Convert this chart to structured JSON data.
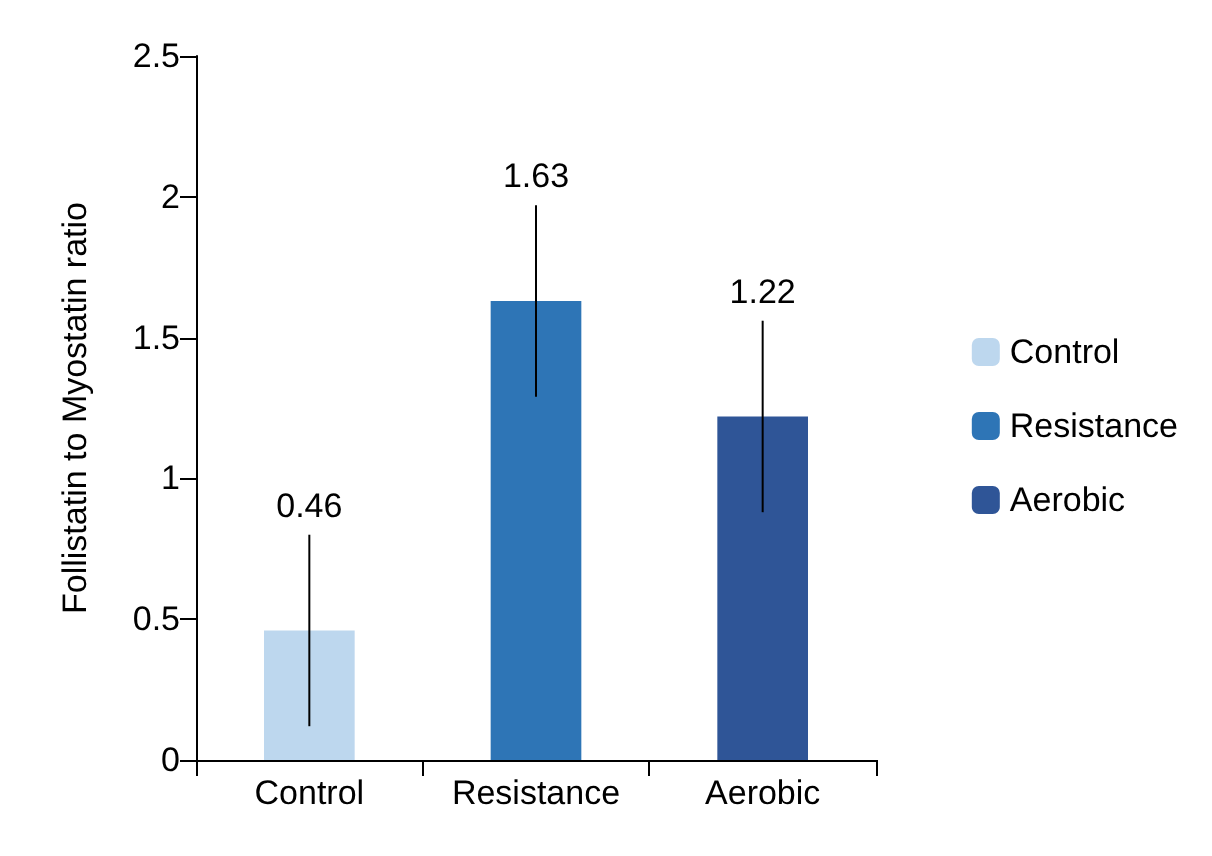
{
  "chart_data": {
    "type": "bar",
    "ylabel": "Follistatin to Myostatin ratio",
    "categories": [
      "Control",
      "Resistance",
      "Aerobic"
    ],
    "series": [
      {
        "name": "Control",
        "color": "#bdd7ee",
        "values": [
          0.46,
          null,
          null
        ],
        "errors": [
          0.34,
          null,
          null
        ]
      },
      {
        "name": "Resistance",
        "color": "#2e75b6",
        "values": [
          null,
          1.63,
          null
        ],
        "errors": [
          null,
          0.34,
          null
        ]
      },
      {
        "name": "Aerobic",
        "color": "#2f5597",
        "values": [
          null,
          null,
          1.22
        ],
        "errors": [
          null,
          null,
          0.34
        ]
      }
    ],
    "ylim": [
      0,
      2.5
    ],
    "yticks": [
      0,
      0.5,
      1,
      1.5,
      2,
      2.5
    ],
    "grid": false,
    "legend": "right",
    "data_labels": true
  }
}
